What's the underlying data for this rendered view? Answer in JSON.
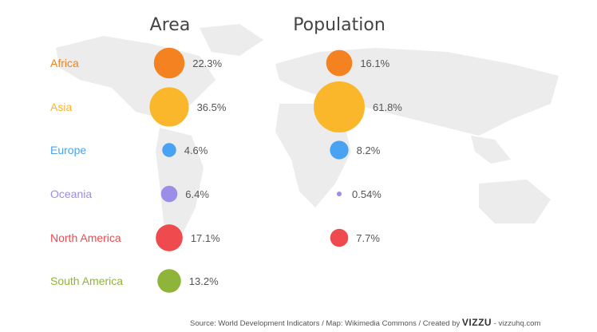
{
  "chart_data": {
    "type": "bubble",
    "columns": [
      "Area",
      "Population"
    ],
    "categories": [
      "Africa",
      "Asia",
      "Europe",
      "Oceania",
      "North America",
      "South America"
    ],
    "series": [
      {
        "name": "Area",
        "values": [
          22.3,
          36.5,
          4.6,
          6.4,
          17.1,
          13.2
        ],
        "labels": [
          "22.3%",
          "36.5%",
          "4.6%",
          "6.4%",
          "17.1%",
          "13.2%"
        ]
      },
      {
        "name": "Population",
        "values": [
          16.1,
          61.8,
          8.2,
          0.54,
          7.7,
          null
        ],
        "labels": [
          "16.1%",
          "61.8%",
          "8.2%",
          "0.54%",
          "7.7%",
          ""
        ]
      }
    ],
    "colors": [
      "#f58220",
      "#fbb72b",
      "#4aa3f2",
      "#9b8ee8",
      "#ef4a4e",
      "#8fb43a"
    ],
    "unit": "%"
  },
  "footer": {
    "text": "Source: World Development Indicators  /  Map: Wikimedia Commons  /  Created by",
    "brand": "VIZZU",
    "url": "vizzuhq.com"
  }
}
